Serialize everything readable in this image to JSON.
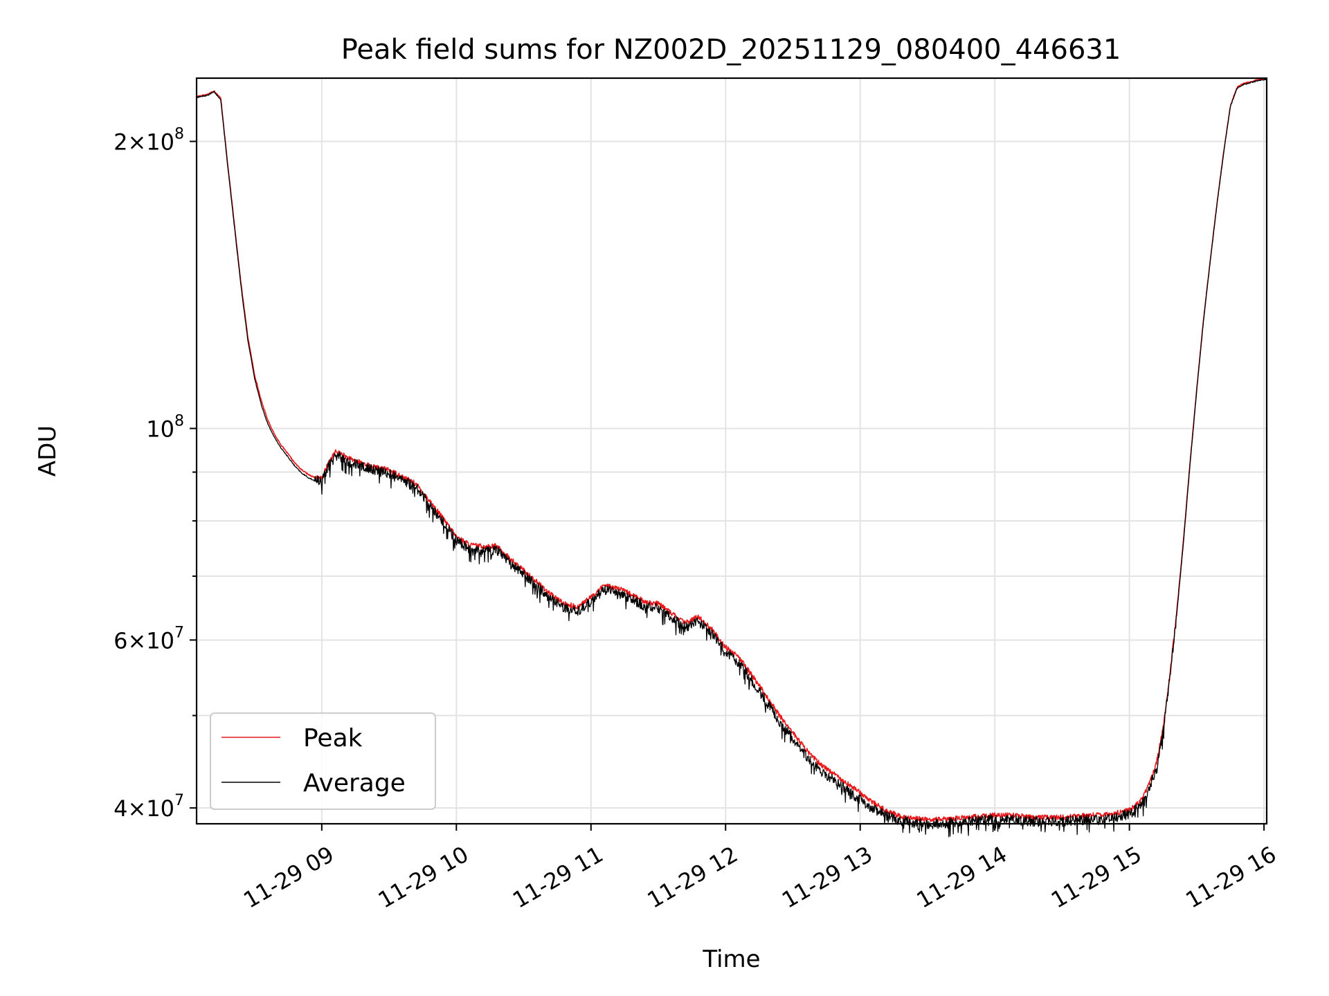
{
  "chart_data": {
    "type": "line",
    "title": "Peak field sums for NZ002D_20251129_080400_446631",
    "xlabel": "Time",
    "ylabel": "ADU",
    "yscale": "log",
    "ylim": [
      38500000,
      233000000
    ],
    "xlim": [
      8.07,
      16.02
    ],
    "grid": true,
    "x_ticks": [
      {
        "value": 9,
        "label": "11-29 09"
      },
      {
        "value": 10,
        "label": "11-29 10"
      },
      {
        "value": 11,
        "label": "11-29 11"
      },
      {
        "value": 12,
        "label": "11-29 12"
      },
      {
        "value": 13,
        "label": "11-29 13"
      },
      {
        "value": 14,
        "label": "11-29 14"
      },
      {
        "value": 15,
        "label": "11-29 15"
      },
      {
        "value": 16,
        "label": "11-29 16"
      }
    ],
    "y_major_ticks": [
      {
        "value": 40000000,
        "mant": "4",
        "exp": "7"
      },
      {
        "value": 60000000,
        "mant": "6",
        "exp": "7"
      },
      {
        "value": 100000000,
        "mant": "",
        "exp": "8"
      },
      {
        "value": 200000000,
        "mant": "2",
        "exp": "8"
      }
    ],
    "y_minor_grid": [
      50000000,
      70000000,
      80000000,
      90000000
    ],
    "legend": {
      "location": "lower left",
      "entries": [
        "Peak",
        "Average"
      ]
    },
    "series": [
      {
        "name": "Peak",
        "color": "#e8191b",
        "x": [
          8.07,
          8.15,
          8.2,
          8.25,
          8.3,
          8.4,
          8.45,
          8.5,
          8.55,
          8.6,
          8.65,
          8.7,
          8.75,
          8.8,
          8.85,
          8.9,
          8.95,
          9.0,
          9.05,
          9.1,
          9.15,
          9.2,
          9.3,
          9.4,
          9.5,
          9.6,
          9.7,
          9.8,
          9.9,
          10.0,
          10.1,
          10.2,
          10.3,
          10.4,
          10.5,
          10.6,
          10.7,
          10.8,
          10.9,
          11.0,
          11.1,
          11.2,
          11.3,
          11.4,
          11.5,
          11.6,
          11.7,
          11.8,
          11.9,
          12.0,
          12.1,
          12.2,
          12.3,
          12.4,
          12.5,
          12.6,
          12.7,
          12.8,
          12.9,
          13.0,
          13.1,
          13.2,
          13.3,
          13.4,
          13.5,
          13.6,
          13.7,
          13.8,
          13.9,
          14.0,
          14.1,
          14.2,
          14.3,
          14.4,
          14.5,
          14.6,
          14.7,
          14.8,
          14.9,
          15.0,
          15.05,
          15.1,
          15.15,
          15.2,
          15.25,
          15.3,
          15.35,
          15.4,
          15.45,
          15.5,
          15.55,
          15.6,
          15.65,
          15.7,
          15.75,
          15.8,
          15.85,
          15.9,
          15.95,
          16.02
        ],
        "y": [
          223000000,
          224000000,
          226000000,
          222000000,
          190000000,
          142000000,
          125000000,
          114000000,
          107000000,
          102000000,
          98500000,
          96000000,
          94000000,
          92000000,
          90500000,
          89500000,
          88800000,
          88600000,
          92000000,
          94500000,
          94000000,
          93000000,
          92000000,
          91000000,
          90500000,
          89000000,
          87500000,
          84000000,
          80500000,
          77000000,
          75500000,
          75200000,
          75300000,
          73000000,
          71000000,
          69000000,
          67000000,
          65500000,
          65000000,
          66500000,
          68500000,
          68000000,
          67000000,
          65800000,
          65500000,
          64000000,
          62500000,
          63500000,
          61500000,
          59000000,
          57500000,
          55000000,
          52500000,
          50000000,
          48000000,
          46000000,
          44500000,
          43500000,
          42500000,
          41500000,
          40500000,
          39700000,
          39200000,
          39000000,
          38900000,
          38900000,
          39000000,
          39100000,
          39200000,
          39300000,
          39300000,
          39200000,
          39100000,
          39100000,
          39100000,
          39200000,
          39300000,
          39400000,
          39500000,
          39800000,
          40300000,
          41000000,
          42500000,
          44500000,
          48500000,
          55000000,
          64000000,
          76000000,
          92000000,
          110000000,
          130000000,
          150000000,
          172000000,
          195000000,
          218000000,
          228000000,
          230000000,
          231000000,
          232000000,
          233000000
        ]
      },
      {
        "name": "Average",
        "color": "#000000",
        "x": [
          8.07,
          8.15,
          8.2,
          8.25,
          8.3,
          8.4,
          8.45,
          8.5,
          8.55,
          8.6,
          8.65,
          8.7,
          8.75,
          8.8,
          8.85,
          8.9,
          8.95,
          9.0,
          9.05,
          9.1,
          9.15,
          9.2,
          9.3,
          9.4,
          9.5,
          9.6,
          9.7,
          9.8,
          9.9,
          10.0,
          10.1,
          10.2,
          10.3,
          10.4,
          10.5,
          10.6,
          10.7,
          10.8,
          10.9,
          11.0,
          11.1,
          11.2,
          11.3,
          11.4,
          11.5,
          11.6,
          11.7,
          11.8,
          11.9,
          12.0,
          12.1,
          12.2,
          12.3,
          12.4,
          12.5,
          12.6,
          12.7,
          12.8,
          12.9,
          13.0,
          13.1,
          13.2,
          13.3,
          13.4,
          13.5,
          13.6,
          13.7,
          13.8,
          13.9,
          14.0,
          14.1,
          14.2,
          14.3,
          14.4,
          14.5,
          14.6,
          14.7,
          14.8,
          14.9,
          15.0,
          15.05,
          15.1,
          15.15,
          15.2,
          15.25,
          15.3,
          15.35,
          15.4,
          15.45,
          15.5,
          15.55,
          15.6,
          15.65,
          15.7,
          15.75,
          15.8,
          15.85,
          15.9,
          15.95,
          16.02
        ],
        "y": [
          222500000,
          223500000,
          225500000,
          221000000,
          189000000,
          141000000,
          124000000,
          113000000,
          106000000,
          101000000,
          97800000,
          95300000,
          93300000,
          91300000,
          89800000,
          88800000,
          88100000,
          87900000,
          91300000,
          93800000,
          93300000,
          92300000,
          91300000,
          90300000,
          89800000,
          88300000,
          86800000,
          83300000,
          79800000,
          76300000,
          74800000,
          74500000,
          74600000,
          72300000,
          70300000,
          68300000,
          66300000,
          64800000,
          64300000,
          65800000,
          67800000,
          67300000,
          66300000,
          65100000,
          64800000,
          63300000,
          61800000,
          62800000,
          60800000,
          58300000,
          56800000,
          54300000,
          51800000,
          49300000,
          47300000,
          45300000,
          43800000,
          42800000,
          41800000,
          40800000,
          39900000,
          39200000,
          38800000,
          38600000,
          38500000,
          38500000,
          38600000,
          38700000,
          38800000,
          38900000,
          38900000,
          38800000,
          38700000,
          38700000,
          38700000,
          38800000,
          38900000,
          39000000,
          39100000,
          39400000,
          39900000,
          40500000,
          42000000,
          44000000,
          48000000,
          54500000,
          63500000,
          75500000,
          91500000,
          109500000,
          129500000,
          149500000,
          171500000,
          194500000,
          217500000,
          227500000,
          229500000,
          230500000,
          231500000,
          232500000
        ]
      }
    ]
  }
}
